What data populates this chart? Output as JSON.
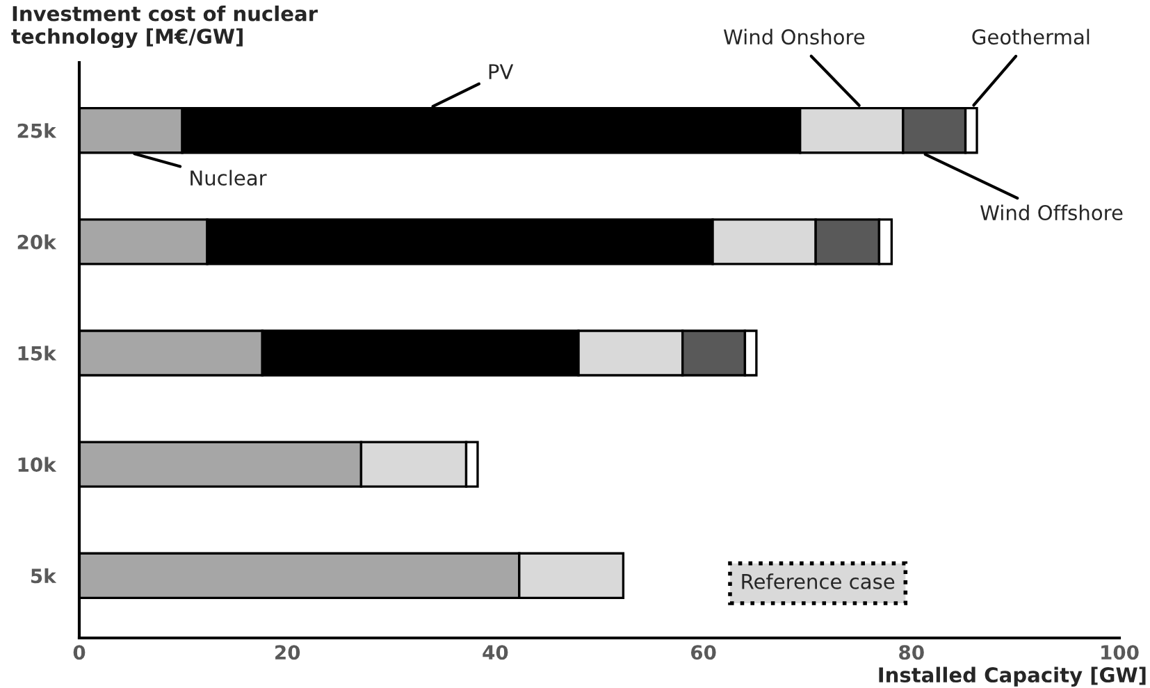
{
  "chart_data": {
    "type": "bar",
    "orientation": "horizontal",
    "stacked": true,
    "ylabel": "Investment cost of nuclear\ntechnology [M€/GW]",
    "xlabel": "Installed Capacity [GW]",
    "categories": [
      "25k",
      "20k",
      "15k",
      "10k",
      "5k"
    ],
    "series": [
      {
        "name": "Nuclear",
        "color": "#a6a6a6",
        "values": [
          9.9,
          12.3,
          17.6,
          27.1,
          42.3
        ]
      },
      {
        "name": "PV",
        "color": "#000000",
        "values": [
          59.4,
          48.6,
          30.4,
          null,
          null
        ]
      },
      {
        "name": "Wind Onshore",
        "color": "#d9d9d9",
        "values": [
          9.9,
          9.9,
          10.0,
          10.1,
          10.0
        ]
      },
      {
        "name": "Wind Offshore",
        "color": "#595959",
        "values": [
          6.0,
          6.1,
          6.0,
          null,
          null
        ]
      },
      {
        "name": "Geothermal",
        "color": "#ffffff",
        "values": [
          1.1,
          1.2,
          1.1,
          1.1,
          null
        ]
      }
    ],
    "xlim": [
      0,
      100
    ],
    "xticks": [
      0,
      20,
      40,
      60,
      80,
      100
    ],
    "grid": false,
    "annotations": [
      "Reference case"
    ]
  }
}
